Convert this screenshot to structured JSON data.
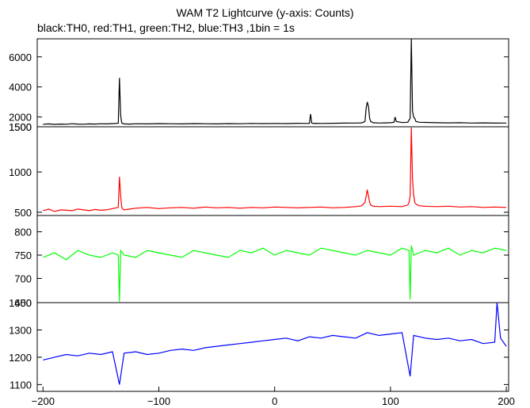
{
  "title": "WAM T2 Lightcurve (y-axis: Counts)",
  "subtitle": "black:TH0, red:TH1, green:TH2, blue:TH3 ,1bin = 1s",
  "chart_data": [
    {
      "type": "line",
      "series": [
        {
          "name": "TH0",
          "color": "#000000",
          "x": [
            -200,
            -195,
            -190,
            -185,
            -180,
            -175,
            -170,
            -165,
            -160,
            -155,
            -150,
            -145,
            -140,
            -135,
            -134,
            -133,
            -132,
            -131,
            -130,
            -125,
            -120,
            -110,
            -100,
            -90,
            -80,
            -70,
            -60,
            -50,
            -40,
            -30,
            -20,
            -10,
            0,
            10,
            20,
            30,
            31,
            32,
            33,
            35,
            40,
            50,
            60,
            70,
            75,
            78,
            79,
            80,
            81,
            82,
            83,
            85,
            90,
            95,
            100,
            103,
            104,
            105,
            110,
            115,
            116,
            117,
            118,
            119,
            120,
            121,
            122,
            125,
            130,
            140,
            150,
            160,
            170,
            180,
            190,
            200
          ],
          "y": [
            1520,
            1540,
            1510,
            1530,
            1520,
            1550,
            1530,
            1520,
            1540,
            1530,
            1550,
            1540,
            1560,
            1580,
            4600,
            2100,
            1600,
            1560,
            1540,
            1530,
            1550,
            1540,
            1560,
            1550,
            1540,
            1560,
            1550,
            1540,
            1560,
            1550,
            1570,
            1560,
            1570,
            1560,
            1580,
            1570,
            2200,
            1600,
            1570,
            1580,
            1570,
            1580,
            1590,
            1600,
            1610,
            1700,
            2600,
            3000,
            2700,
            1900,
            1700,
            1620,
            1600,
            1610,
            1620,
            1650,
            2000,
            1700,
            1630,
            1650,
            1800,
            1900,
            7200,
            2400,
            2000,
            1900,
            1700,
            1650,
            1640,
            1620,
            1610,
            1620,
            1600,
            1610,
            1590,
            1600
          ]
        }
      ],
      "xlim": [
        -205,
        202
      ],
      "ylim": [
        1350,
        7200
      ],
      "y_ticks": [
        2000,
        4000,
        6000
      ],
      "y_tick_labels": [
        "2000",
        "4000",
        "6000"
      ],
      "bottom_label": "1500",
      "grid": false
    },
    {
      "type": "line",
      "series": [
        {
          "name": "TH1",
          "color": "#ff0000",
          "x": [
            -200,
            -195,
            -190,
            -185,
            -180,
            -175,
            -170,
            -165,
            -160,
            -155,
            -150,
            -145,
            -140,
            -135,
            -134,
            -133,
            -132,
            -131,
            -130,
            -125,
            -120,
            -110,
            -100,
            -90,
            -80,
            -70,
            -60,
            -50,
            -40,
            -30,
            -20,
            -10,
            0,
            10,
            20,
            30,
            40,
            50,
            60,
            70,
            75,
            78,
            79,
            80,
            81,
            82,
            83,
            85,
            90,
            100,
            110,
            115,
            116,
            117,
            118,
            119,
            120,
            121,
            122,
            125,
            130,
            140,
            150,
            160,
            170,
            180,
            190,
            200
          ],
          "y": [
            520,
            540,
            510,
            530,
            525,
            520,
            540,
            530,
            520,
            535,
            525,
            530,
            545,
            560,
            940,
            700,
            560,
            540,
            530,
            540,
            550,
            560,
            545,
            555,
            560,
            550,
            565,
            555,
            560,
            550,
            560,
            555,
            565,
            560,
            555,
            560,
            565,
            555,
            560,
            570,
            580,
            620,
            700,
            780,
            700,
            620,
            590,
            575,
            570,
            575,
            570,
            590,
            620,
            700,
            1550,
            900,
            720,
            620,
            600,
            580,
            575,
            570,
            575,
            565,
            570,
            560,
            565,
            560
          ]
        }
      ],
      "xlim": [
        -205,
        202
      ],
      "ylim": [
        460,
        1560
      ],
      "y_ticks": [
        500,
        1000
      ],
      "y_tick_labels": [
        "500",
        "1000"
      ],
      "top_label": "1500",
      "grid": false
    },
    {
      "type": "line",
      "series": [
        {
          "name": "TH2",
          "color": "#00ff00",
          "x": [
            -200,
            -190,
            -180,
            -170,
            -160,
            -150,
            -140,
            -135,
            -134,
            -133,
            -130,
            -120,
            -110,
            -100,
            -90,
            -80,
            -70,
            -60,
            -50,
            -40,
            -30,
            -20,
            -10,
            0,
            10,
            20,
            30,
            40,
            50,
            60,
            70,
            80,
            90,
            100,
            110,
            116,
            117,
            118,
            119,
            120,
            130,
            140,
            150,
            160,
            170,
            180,
            190,
            200
          ],
          "y": [
            745,
            755,
            740,
            760,
            750,
            745,
            755,
            750,
            650,
            760,
            750,
            745,
            760,
            755,
            750,
            745,
            760,
            755,
            750,
            745,
            760,
            755,
            765,
            750,
            760,
            755,
            750,
            765,
            760,
            755,
            750,
            760,
            755,
            750,
            765,
            760,
            655,
            770,
            760,
            750,
            760,
            755,
            765,
            750,
            760,
            755,
            765,
            760
          ]
        }
      ],
      "xlim": [
        -205,
        202
      ],
      "ylim": [
        648,
        835
      ],
      "y_ticks": [
        700,
        750,
        800
      ],
      "y_tick_labels": [
        "700",
        "750",
        "800"
      ],
      "bottom_label": "650",
      "grid": false
    },
    {
      "type": "line",
      "series": [
        {
          "name": "TH3",
          "color": "#0000ff",
          "x": [
            -200,
            -190,
            -180,
            -170,
            -160,
            -150,
            -140,
            -134,
            -130,
            -120,
            -110,
            -100,
            -90,
            -80,
            -70,
            -60,
            -50,
            -40,
            -30,
            -20,
            -10,
            0,
            10,
            20,
            30,
            40,
            50,
            60,
            70,
            80,
            90,
            100,
            110,
            117,
            120,
            130,
            140,
            150,
            160,
            170,
            180,
            190,
            192,
            195,
            200
          ],
          "y": [
            1190,
            1200,
            1210,
            1205,
            1215,
            1210,
            1220,
            1100,
            1215,
            1220,
            1210,
            1215,
            1225,
            1230,
            1225,
            1235,
            1240,
            1245,
            1250,
            1255,
            1260,
            1265,
            1270,
            1260,
            1275,
            1270,
            1280,
            1275,
            1270,
            1290,
            1280,
            1285,
            1290,
            1130,
            1280,
            1270,
            1265,
            1270,
            1260,
            1265,
            1250,
            1255,
            1400,
            1270,
            1240
          ]
        }
      ],
      "xlim": [
        -205,
        202
      ],
      "ylim": [
        1075,
        1400
      ],
      "y_ticks": [
        1100,
        1200,
        1300
      ],
      "y_tick_labels": [
        "1100",
        "1200",
        "1300"
      ],
      "top_label": "1400",
      "x_ticks": [
        -200,
        -100,
        0,
        100,
        200
      ],
      "x_tick_labels": [
        "−200",
        "−100",
        "0",
        "100",
        "200"
      ],
      "grid": false
    }
  ]
}
